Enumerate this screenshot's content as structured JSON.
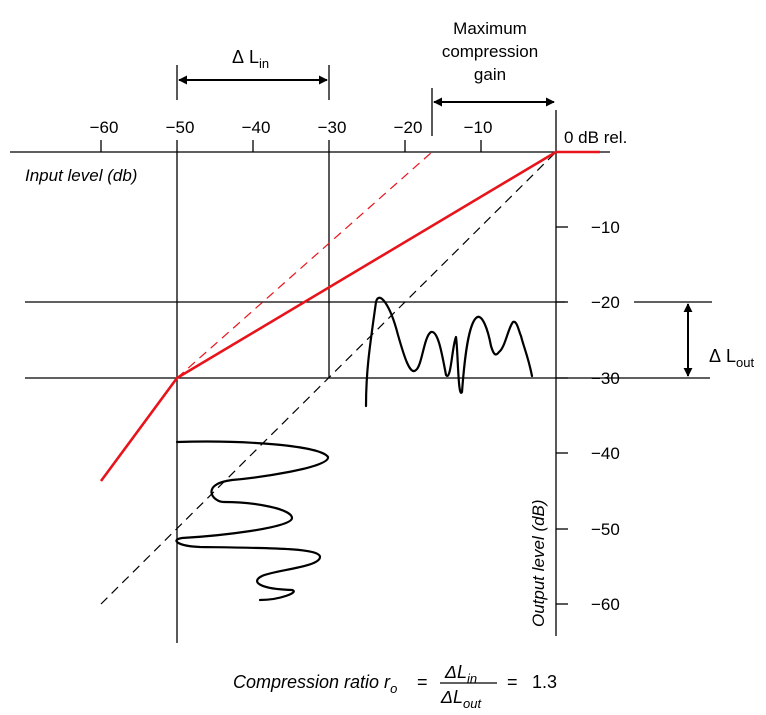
{
  "top_axis": {
    "ticks": [
      "−60",
      "−50",
      "−40",
      "−30",
      "−20",
      "−10"
    ],
    "zero_label": "0 dB rel.",
    "title": "Input level (db)"
  },
  "right_axis": {
    "ticks": [
      "−10",
      "−20",
      "−30",
      "−40",
      "−50",
      "−60"
    ],
    "title": "Output level (dB)"
  },
  "annotations": {
    "delta_lin": {
      "delta": "Δ",
      "L": "L",
      "sub": "in"
    },
    "delta_lout": {
      "delta": "Δ",
      "L": "L",
      "sub": "out"
    },
    "max_gain": [
      "Maximum",
      "compression",
      "gain"
    ]
  },
  "formula": {
    "prefix": "Compression ratio r",
    "prefix_sub": "o",
    "eq1": "=",
    "num": "ΔL",
    "num_sub": "in",
    "den": "ΔL",
    "den_sub": "out",
    "eq2": "=",
    "value": "1.3"
  },
  "colors": {
    "compression_curve": "#e8141b",
    "reference_lines": "#000000"
  }
}
